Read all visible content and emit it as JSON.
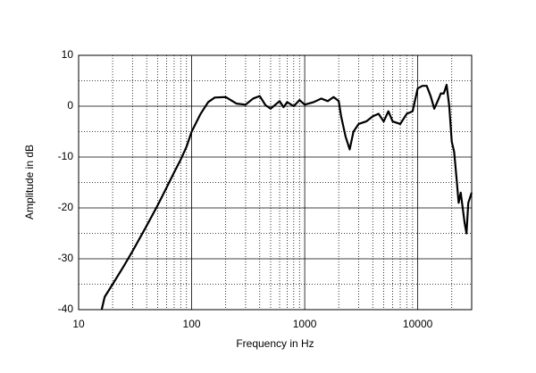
{
  "chart_data": {
    "type": "line",
    "xlabel": "Frequency in Hz",
    "ylabel": "Amplitude in dB",
    "xscale": "log",
    "grid": true,
    "minor_grid": true,
    "color": "#000000",
    "xlim": [
      10,
      30000
    ],
    "ylim": [
      -40,
      10
    ],
    "xticks": [
      10,
      100,
      1000,
      10000
    ],
    "yticks": [
      -40,
      -30,
      -20,
      -10,
      0,
      10
    ],
    "x": [
      16,
      17,
      20,
      25,
      30,
      40,
      50,
      60,
      70,
      80,
      90,
      100,
      120,
      140,
      160,
      200,
      250,
      300,
      350,
      400,
      450,
      500,
      550,
      600,
      650,
      700,
      800,
      900,
      1000,
      1200,
      1400,
      1600,
      1800,
      2000,
      2100,
      2300,
      2500,
      2700,
      3000,
      3500,
      4000,
      4500,
      5000,
      5500,
      6000,
      7000,
      8000,
      9000,
      10000,
      11000,
      12000,
      13000,
      14000,
      15000,
      16000,
      17000,
      18000,
      19000,
      20000,
      21000,
      22000,
      23000,
      24000,
      26000,
      27000,
      28000,
      30000
    ],
    "values": [
      -40,
      -37.5,
      -35,
      -31.5,
      -28.5,
      -23.5,
      -19.5,
      -16,
      -13,
      -10.5,
      -8,
      -5,
      -1.5,
      0.8,
      1.7,
      1.8,
      0.5,
      0.3,
      1.5,
      2.0,
      0.2,
      -0.5,
      0.3,
      1.0,
      -0.2,
      0.8,
      0,
      1.2,
      0.3,
      0.8,
      1.5,
      1.0,
      1.8,
      1.0,
      -2,
      -6,
      -8.5,
      -5,
      -3.5,
      -3,
      -2,
      -1.5,
      -3,
      -1,
      -3,
      -3.5,
      -1.5,
      -1,
      3.5,
      4,
      4,
      2,
      -0.5,
      1,
      2.5,
      2.5,
      4.2,
      0,
      -7,
      -9,
      -14,
      -19,
      -17,
      -23,
      -25,
      -19,
      -17
    ]
  }
}
